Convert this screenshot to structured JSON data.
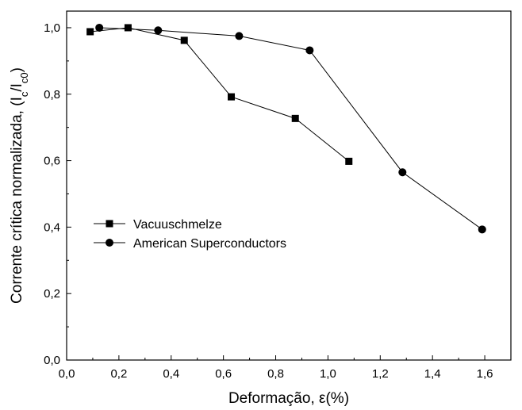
{
  "chart_data": {
    "type": "line",
    "title": "",
    "xlabel": "Deformação, ε(%)",
    "ylabel_main": "Corrente crítica normalizada, (I",
    "ylabel_sub1": "c",
    "ylabel_mid": "/I",
    "ylabel_sub2": "c0",
    "ylabel_end": ")",
    "xlim": [
      0.0,
      1.7
    ],
    "ylim": [
      0.0,
      1.05
    ],
    "xticks": [
      0.0,
      0.2,
      0.4,
      0.6,
      0.8,
      1.0,
      1.2,
      1.4,
      1.6
    ],
    "xtick_labels": [
      "0,0",
      "0,2",
      "0,4",
      "0,6",
      "0,8",
      "1,0",
      "1,2",
      "1,4",
      "1,6"
    ],
    "yticks": [
      0.0,
      0.2,
      0.4,
      0.6,
      0.8,
      1.0
    ],
    "ytick_labels": [
      "0,0",
      "0,2",
      "0,4",
      "0,6",
      "0,8",
      "1,0"
    ],
    "grid": false,
    "legend_position": "center-left",
    "series": [
      {
        "name": "Vacuuschmelze",
        "marker": "square",
        "color": "#000000",
        "x": [
          0.09,
          0.235,
          0.45,
          0.63,
          0.875,
          1.08
        ],
        "y": [
          0.988,
          1.0,
          0.962,
          0.792,
          0.727,
          0.598
        ]
      },
      {
        "name": "American Superconductors",
        "marker": "circle",
        "color": "#000000",
        "x": [
          0.125,
          0.35,
          0.66,
          0.93,
          1.285,
          1.59
        ],
        "y": [
          1.0,
          0.992,
          0.975,
          0.932,
          0.565,
          0.393
        ]
      }
    ]
  }
}
